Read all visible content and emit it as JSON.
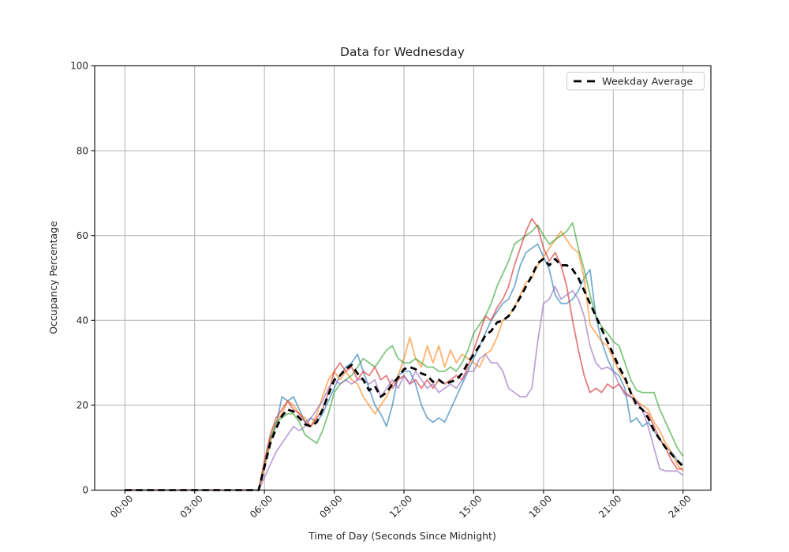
{
  "figure": {
    "background": "#ffffff"
  },
  "chart_data": {
    "type": "line",
    "title": "Data for Wednesday",
    "xlabel": "Time of Day (Seconds Since Midnight)",
    "ylabel": "Occupancy Percentage",
    "x_tick_labels": [
      "00:00",
      "03:00",
      "06:00",
      "09:00",
      "12:00",
      "15:00",
      "18:00",
      "21:00",
      "24:00"
    ],
    "x_tick_minutes": [
      0,
      180,
      360,
      540,
      720,
      900,
      1080,
      1260,
      1440
    ],
    "y_ticks": [
      0,
      20,
      40,
      60,
      80,
      100
    ],
    "ylim": [
      0,
      100
    ],
    "xlim_minutes": [
      0,
      1440
    ],
    "x_start_minute": 0,
    "x_step_minutes": 15,
    "grid": true,
    "colors": {
      "grid": "#b0b0b0",
      "spine": "#1a1a1a",
      "text": "#262626",
      "legend_border": "#cccccc",
      "background": "#ffffff"
    },
    "legend": {
      "position": "upper right",
      "entries": [
        {
          "label": "Weekday Average",
          "style": "dashed",
          "color": "#000000"
        }
      ]
    },
    "series": [
      {
        "id": "day-line-blue",
        "color": "#1f77b4",
        "opacity": 0.6,
        "width": 1.8,
        "dash": null,
        "values": [
          0,
          0,
          0,
          0,
          0,
          0,
          0,
          0,
          0,
          0,
          0,
          0,
          0,
          0,
          0,
          0,
          0,
          0,
          0,
          0,
          0,
          0,
          0,
          0,
          6,
          12,
          15,
          22,
          21,
          22,
          19,
          16,
          17,
          16,
          18,
          21,
          24,
          27,
          29,
          30,
          32,
          28,
          24,
          20,
          18,
          15,
          20,
          27,
          28,
          28,
          25,
          20,
          17,
          16,
          17,
          16,
          19,
          22,
          25,
          28,
          31,
          34,
          37,
          40,
          42,
          44,
          45,
          48,
          53,
          56,
          57,
          58,
          55,
          52,
          46,
          44,
          44,
          45,
          47,
          50,
          52,
          41,
          35,
          31,
          28,
          27,
          24,
          16,
          17,
          15,
          16,
          14,
          12,
          10,
          9,
          7,
          6
        ]
      },
      {
        "id": "day-line-orange",
        "color": "#ff7f0e",
        "opacity": 0.6,
        "width": 1.8,
        "dash": null,
        "values": [
          0,
          0,
          0,
          0,
          0,
          0,
          0,
          0,
          0,
          0,
          0,
          0,
          0,
          0,
          0,
          0,
          0,
          0,
          0,
          0,
          0,
          0,
          0,
          0,
          5,
          11,
          16,
          18,
          21,
          20,
          18,
          17,
          15,
          18,
          22,
          26,
          28,
          26,
          28,
          26,
          25,
          22,
          20,
          18,
          20,
          22,
          25,
          27,
          31,
          36,
          31,
          29,
          34,
          30,
          34,
          29,
          33,
          30,
          32,
          31,
          30,
          29,
          32,
          33,
          36,
          40,
          41,
          43,
          46,
          49,
          50,
          53,
          55,
          57,
          59,
          61,
          59,
          57,
          56,
          50,
          39,
          37,
          35,
          34,
          31,
          28,
          26,
          23,
          21,
          20,
          19,
          16,
          14,
          11,
          9,
          6,
          4.5
        ]
      },
      {
        "id": "day-line-green",
        "color": "#2ca02c",
        "opacity": 0.6,
        "width": 1.8,
        "dash": null,
        "values": [
          0,
          0,
          0,
          0,
          0,
          0,
          0,
          0,
          0,
          0,
          0,
          0,
          0,
          0,
          0,
          0,
          0,
          0,
          0,
          0,
          0,
          0,
          0,
          0,
          6,
          12,
          16,
          17,
          18,
          18,
          16,
          13,
          12,
          11,
          14,
          18,
          23,
          25,
          26,
          27,
          29,
          31,
          30,
          29,
          31,
          33,
          34,
          31,
          30,
          30,
          31,
          30,
          29,
          29,
          28,
          28,
          29,
          28,
          30,
          33,
          37,
          39,
          41,
          44,
          48,
          51,
          54,
          58,
          59,
          60,
          61,
          62.5,
          60,
          58,
          59,
          60,
          61,
          63,
          57,
          52,
          46,
          41,
          38.5,
          37,
          35,
          34,
          30,
          26,
          23.5,
          23,
          23,
          23,
          19,
          16,
          13,
          10,
          8
        ]
      },
      {
        "id": "day-line-red",
        "color": "#d62728",
        "opacity": 0.6,
        "width": 1.8,
        "dash": null,
        "values": [
          0,
          0,
          0,
          0,
          0,
          0,
          0,
          0,
          0,
          0,
          0,
          0,
          0,
          0,
          0,
          0,
          0,
          0,
          0,
          0,
          0,
          0,
          0,
          0,
          7,
          13,
          17,
          19,
          21,
          19,
          18,
          16,
          15,
          17,
          19,
          23,
          28,
          30,
          28,
          29,
          26,
          28,
          27,
          29,
          26,
          27,
          24,
          26,
          27,
          25,
          26,
          24,
          26,
          24,
          26,
          25,
          26,
          27,
          26,
          29,
          33,
          37,
          41,
          40,
          43,
          45,
          48,
          53,
          57,
          61,
          64,
          62,
          57,
          54,
          56,
          53,
          48,
          40,
          33,
          27,
          23,
          24,
          23,
          25,
          24,
          25,
          23,
          22,
          21,
          19,
          18,
          15,
          12,
          10,
          7,
          5,
          5
        ]
      },
      {
        "id": "day-line-purple",
        "color": "#9467bd",
        "opacity": 0.6,
        "width": 1.8,
        "dash": null,
        "values": [
          0,
          0,
          0,
          0,
          0,
          0,
          0,
          0,
          0,
          0,
          0,
          0,
          0,
          0,
          0,
          0,
          0,
          0,
          0,
          0,
          0,
          0,
          0,
          0,
          3,
          6,
          9,
          11,
          13,
          15,
          14,
          15,
          17,
          19,
          21,
          24,
          26,
          25,
          26,
          25,
          26,
          26,
          25,
          26,
          22,
          24,
          26,
          24,
          27,
          25,
          28,
          26,
          24,
          25,
          23,
          24,
          25,
          24,
          26,
          28,
          28,
          31,
          32,
          30,
          30,
          28,
          24,
          23,
          22,
          22,
          24,
          35,
          44,
          45,
          48,
          45,
          46,
          47,
          45,
          41,
          34,
          30,
          28.5,
          29,
          28,
          25,
          22.5,
          22,
          21,
          19,
          15,
          10,
          5,
          4.5,
          4.5,
          4.5,
          3.5
        ]
      },
      {
        "id": "weekday-average-line",
        "label": "Weekday Average",
        "color": "#000000",
        "opacity": 1,
        "width": 2.8,
        "dash": "8.5 5.5",
        "values": [
          0,
          0,
          0,
          0,
          0,
          0,
          0,
          0,
          0,
          0,
          0,
          0,
          0,
          0,
          0,
          0,
          0,
          0,
          0,
          0,
          0,
          0,
          0,
          0,
          5.5,
          11,
          14.5,
          17.5,
          19,
          18.5,
          17,
          15.5,
          15,
          16,
          19,
          22.5,
          26,
          27,
          28.5,
          29.5,
          27.5,
          26,
          23.5,
          24.5,
          22,
          23,
          25,
          26.5,
          28.5,
          29,
          28.5,
          27.5,
          27,
          25.5,
          26,
          25,
          25.5,
          26,
          27.5,
          30,
          32,
          34,
          36.5,
          37.5,
          39.5,
          40,
          41,
          43,
          45.5,
          48,
          50.5,
          53.5,
          54.5,
          53,
          54.5,
          53,
          53,
          52,
          50,
          47,
          44,
          41,
          38,
          35,
          32,
          29,
          26.5,
          23,
          20,
          19,
          17,
          14,
          12,
          10,
          8.5,
          7,
          5.5
        ]
      }
    ]
  }
}
